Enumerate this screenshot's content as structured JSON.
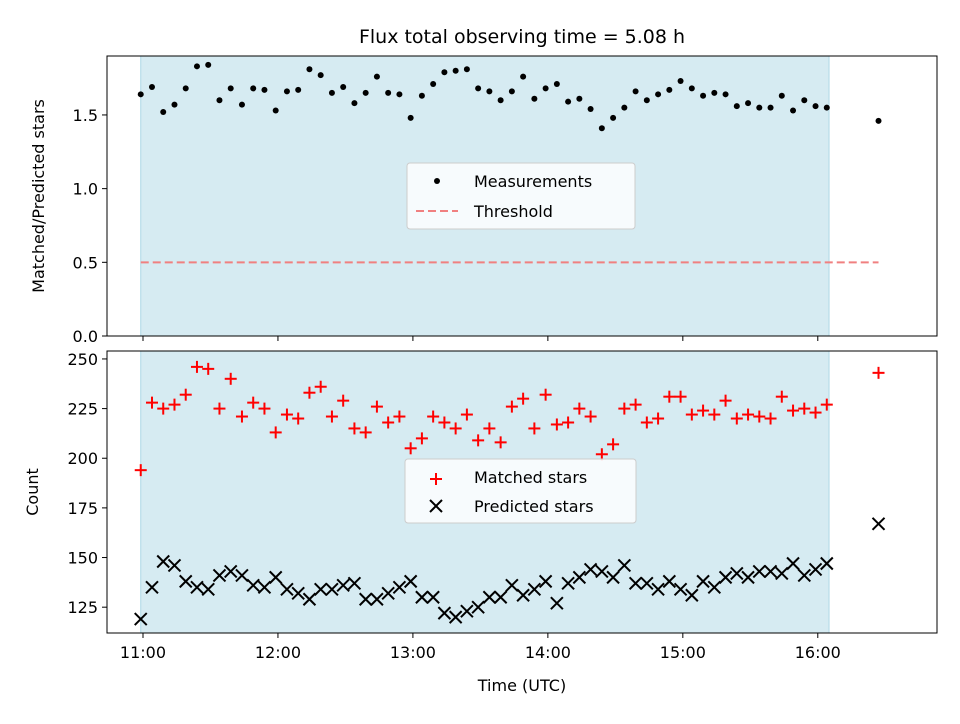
{
  "chart_data": [
    {
      "type": "scatter",
      "title": "Flux total observing time = 5.08 h",
      "ylabel": "Matched/Predicted stars",
      "xlim": [
        "10:44",
        "16:53"
      ],
      "ylim": [
        0,
        1.9
      ],
      "yticks": [
        "0.0",
        "0.5",
        "1.0",
        "1.5"
      ],
      "ytick_values": [
        0,
        0.5,
        1.0,
        1.5
      ],
      "shaded_interval": [
        "10:59",
        "16:05"
      ],
      "shade_color": "#add8e6",
      "legend": "center",
      "series": [
        {
          "name": "Measurements",
          "marker": "dot",
          "color": "#000000",
          "x": [
            "10:59",
            "11:04",
            "11:09",
            "11:14",
            "11:19",
            "11:24",
            "11:29",
            "11:34",
            "11:39",
            "11:44",
            "11:49",
            "11:54",
            "11:59",
            "12:04",
            "12:09",
            "12:14",
            "12:19",
            "12:24",
            "12:29",
            "12:34",
            "12:39",
            "12:44",
            "12:49",
            "12:54",
            "12:59",
            "13:04",
            "13:09",
            "13:14",
            "13:19",
            "13:24",
            "13:29",
            "13:34",
            "13:39",
            "13:44",
            "13:49",
            "13:54",
            "13:59",
            "14:04",
            "14:09",
            "14:14",
            "14:19",
            "14:24",
            "14:29",
            "14:34",
            "14:39",
            "14:44",
            "14:49",
            "14:54",
            "14:59",
            "15:04",
            "15:09",
            "15:14",
            "15:19",
            "15:24",
            "15:29",
            "15:34",
            "15:39",
            "15:44",
            "15:49",
            "15:54",
            "15:59",
            "16:04",
            "16:27"
          ],
          "y": [
            1.64,
            1.69,
            1.52,
            1.57,
            1.68,
            1.83,
            1.84,
            1.6,
            1.68,
            1.57,
            1.68,
            1.67,
            1.53,
            1.66,
            1.67,
            1.81,
            1.77,
            1.65,
            1.69,
            1.58,
            1.65,
            1.76,
            1.65,
            1.64,
            1.48,
            1.63,
            1.71,
            1.79,
            1.8,
            1.81,
            1.68,
            1.66,
            1.6,
            1.66,
            1.76,
            1.61,
            1.68,
            1.71,
            1.59,
            1.61,
            1.54,
            1.41,
            1.48,
            1.55,
            1.66,
            1.6,
            1.64,
            1.67,
            1.73,
            1.68,
            1.63,
            1.65,
            1.64,
            1.56,
            1.58,
            1.55,
            1.55,
            1.63,
            1.53,
            1.6,
            1.56,
            1.55,
            1.46
          ]
        },
        {
          "name": "Threshold",
          "marker": "dashed-line",
          "color": "#f08080",
          "x": [
            "10:59",
            "16:27"
          ],
          "y": [
            0.5,
            0.5
          ]
        }
      ]
    },
    {
      "type": "scatter",
      "xlabel": "Time (UTC)",
      "ylabel": "Count",
      "xlim": [
        "10:44",
        "16:53"
      ],
      "ylim": [
        112,
        254
      ],
      "yticks": [
        "125",
        "150",
        "175",
        "200",
        "225",
        "250"
      ],
      "ytick_values": [
        125,
        150,
        175,
        200,
        225,
        250
      ],
      "xticks": [
        "11:00",
        "12:00",
        "13:00",
        "14:00",
        "15:00",
        "16:00"
      ],
      "shaded_interval": [
        "10:59",
        "16:05"
      ],
      "shade_color": "#add8e6",
      "legend": "center",
      "series": [
        {
          "name": "Matched stars",
          "marker": "plus",
          "color": "#ff0000",
          "x": [
            "10:59",
            "11:04",
            "11:09",
            "11:14",
            "11:19",
            "11:24",
            "11:29",
            "11:34",
            "11:39",
            "11:44",
            "11:49",
            "11:54",
            "11:59",
            "12:04",
            "12:09",
            "12:14",
            "12:19",
            "12:24",
            "12:29",
            "12:34",
            "12:39",
            "12:44",
            "12:49",
            "12:54",
            "12:59",
            "13:04",
            "13:09",
            "13:14",
            "13:19",
            "13:24",
            "13:29",
            "13:34",
            "13:39",
            "13:44",
            "13:49",
            "13:54",
            "13:59",
            "14:04",
            "14:09",
            "14:14",
            "14:19",
            "14:24",
            "14:29",
            "14:34",
            "14:39",
            "14:44",
            "14:49",
            "14:54",
            "14:59",
            "15:04",
            "15:09",
            "15:14",
            "15:19",
            "15:24",
            "15:29",
            "15:34",
            "15:39",
            "15:44",
            "15:49",
            "15:54",
            "15:59",
            "16:04",
            "16:27"
          ],
          "y": [
            194,
            228,
            225,
            227,
            232,
            246,
            245,
            225,
            240,
            221,
            228,
            225,
            213,
            222,
            220,
            233,
            236,
            221,
            229,
            215,
            213,
            226,
            218,
            221,
            205,
            210,
            221,
            218,
            215,
            222,
            209,
            215,
            208,
            226,
            230,
            215,
            232,
            217,
            218,
            225,
            221,
            202,
            207,
            225,
            227,
            218,
            220,
            231,
            231,
            222,
            224,
            222,
            229,
            220,
            222,
            221,
            220,
            231,
            224,
            225,
            223,
            227,
            243
          ]
        },
        {
          "name": "Predicted stars",
          "marker": "x",
          "color": "#000000",
          "x": [
            "10:59",
            "11:04",
            "11:09",
            "11:14",
            "11:19",
            "11:24",
            "11:29",
            "11:34",
            "11:39",
            "11:44",
            "11:49",
            "11:54",
            "11:59",
            "12:04",
            "12:09",
            "12:14",
            "12:19",
            "12:24",
            "12:29",
            "12:34",
            "12:39",
            "12:44",
            "12:49",
            "12:54",
            "12:59",
            "13:04",
            "13:09",
            "13:14",
            "13:19",
            "13:24",
            "13:29",
            "13:34",
            "13:39",
            "13:44",
            "13:49",
            "13:54",
            "13:59",
            "14:04",
            "14:09",
            "14:14",
            "14:19",
            "14:24",
            "14:29",
            "14:34",
            "14:39",
            "14:44",
            "14:49",
            "14:54",
            "14:59",
            "15:04",
            "15:09",
            "15:14",
            "15:19",
            "15:24",
            "15:29",
            "15:34",
            "15:39",
            "15:44",
            "15:49",
            "15:54",
            "15:59",
            "16:04",
            "16:27"
          ],
          "y": [
            119,
            135,
            148,
            146,
            138,
            135,
            134,
            141,
            143,
            141,
            136,
            135,
            140,
            134,
            132,
            129,
            134,
            134,
            136,
            137,
            129,
            129,
            132,
            135,
            138,
            130,
            130,
            122,
            120,
            123,
            125,
            130,
            130,
            136,
            131,
            134,
            138,
            127,
            137,
            140,
            144,
            143,
            140,
            146,
            137,
            137,
            134,
            138,
            134,
            131,
            138,
            135,
            140,
            142,
            140,
            143,
            143,
            142,
            147,
            141,
            144,
            147,
            167
          ]
        }
      ]
    }
  ]
}
